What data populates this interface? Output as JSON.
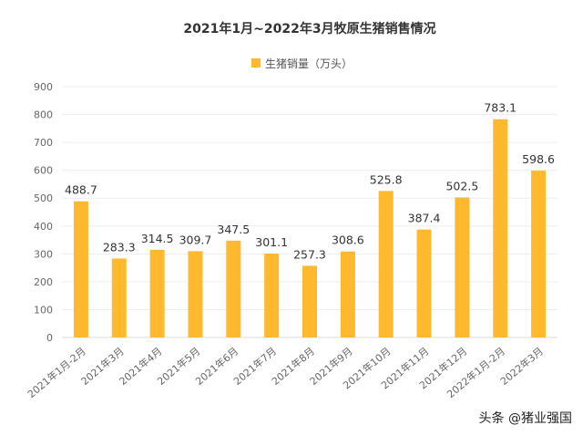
{
  "chart_data": {
    "type": "bar",
    "title": "2021年1月~2022年3月牧原生猪销售情况",
    "legend": [
      {
        "label": "生猪销量（万头）",
        "color": "#FFB92E"
      }
    ],
    "legend_position": "top-center",
    "categories": [
      "2021年1月-2月",
      "2021年3月",
      "2021年4月",
      "2021年5月",
      "2021年6月",
      "2021年7月",
      "2021年8月",
      "2021年9月",
      "2021年10月",
      "2021年11月",
      "2021年12月",
      "2022年1月-2月",
      "2022年3月"
    ],
    "values": [
      488.7,
      283.3,
      314.5,
      309.7,
      347.5,
      301.1,
      257.3,
      308.6,
      525.8,
      387.4,
      502.5,
      783.1,
      598.6
    ],
    "ylim": [
      0,
      900
    ],
    "yticks": [
      0,
      100,
      200,
      300,
      400,
      500,
      600,
      700,
      800,
      900
    ],
    "grid": true,
    "xlabel": "",
    "ylabel": ""
  },
  "footer": "头条 @猪业强国"
}
